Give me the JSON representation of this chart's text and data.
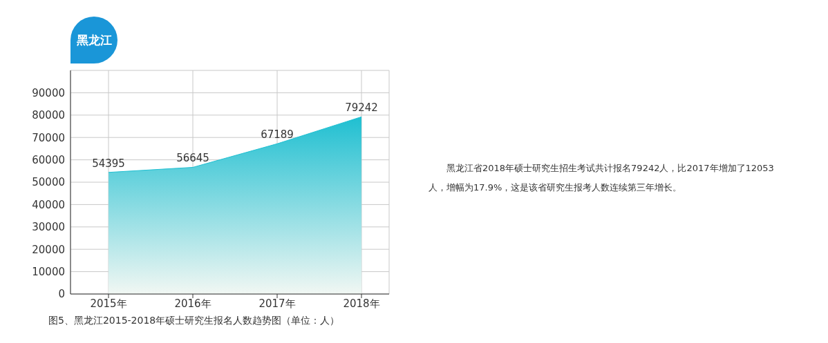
{
  "chart_data": {
    "type": "area",
    "title": "黑龙江",
    "categories": [
      "2015年",
      "2016年",
      "2017年",
      "2018年"
    ],
    "series": [
      {
        "color": "#1fbfd1",
        "values": [
          54395,
          56645,
          67189,
          79242
        ]
      }
    ],
    "data_labels": true,
    "ylim": [
      0,
      100000
    ],
    "yticks": [
      0,
      10000,
      20000,
      30000,
      40000,
      50000,
      60000,
      70000,
      80000,
      90000
    ],
    "grid": true,
    "annotations": [
      "图5、黑龙江2015-2018年硕士研究生报名人数趋势图（单位：人）",
      "黑龙江省2018年硕士研究生招生考试共计报名79242人，比2017年增加了12053人，增幅为17.9%，这是该省研究生报考人数连续第三年增长。"
    ]
  }
}
